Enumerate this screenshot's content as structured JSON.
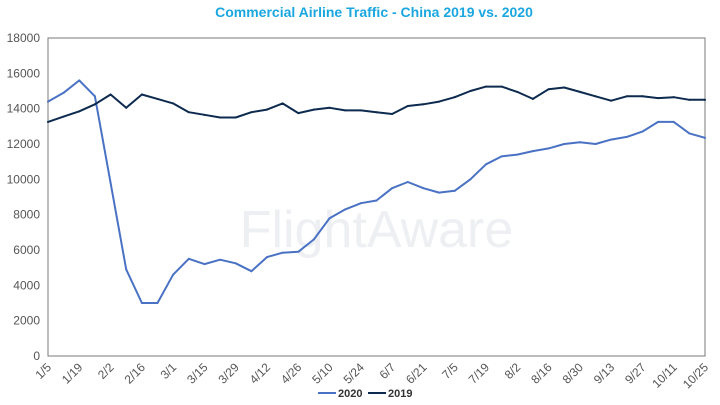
{
  "chart_data": {
    "type": "line",
    "title": "Commercial Airline Traffic - China 2019 vs. 2020",
    "watermark": "FlightAware",
    "xlabel": "",
    "ylabel": "",
    "ylim": [
      0,
      18000
    ],
    "yticks": [
      0,
      2000,
      4000,
      6000,
      8000,
      10000,
      12000,
      14000,
      16000,
      18000
    ],
    "grid": false,
    "legend_position": "bottom-center",
    "x": [
      "1/5",
      "1/12",
      "1/19",
      "1/26",
      "2/2",
      "2/9",
      "2/16",
      "2/23",
      "3/1",
      "3/8",
      "3/15",
      "3/22",
      "3/29",
      "4/5",
      "4/12",
      "4/19",
      "4/26",
      "5/3",
      "5/10",
      "5/17",
      "5/24",
      "5/31",
      "6/7",
      "6/14",
      "6/21",
      "6/28",
      "7/5",
      "7/12",
      "7/19",
      "7/26",
      "8/2",
      "8/9",
      "8/16",
      "8/23",
      "8/30",
      "9/6",
      "9/13",
      "9/20",
      "9/27",
      "10/4",
      "10/11",
      "10/18",
      "10/25"
    ],
    "xtick_labels": [
      "1/5",
      "1/19",
      "2/2",
      "2/16",
      "3/1",
      "3/15",
      "3/29",
      "4/12",
      "4/26",
      "5/10",
      "5/24",
      "6/7",
      "6/21",
      "7/5",
      "7/19",
      "8/2",
      "8/16",
      "8/30",
      "9/13",
      "9/27",
      "10/11",
      "10/25"
    ],
    "series": [
      {
        "name": "2020",
        "color": "#4a72c4",
        "values": [
          14400,
          14900,
          15600,
          14700,
          9800,
          4900,
          3000,
          3000,
          4600,
          5500,
          5200,
          5450,
          5250,
          4800,
          5600,
          5850,
          5900,
          6600,
          7800,
          8300,
          8650,
          8800,
          9500,
          9850,
          9500,
          9250,
          9350,
          10000,
          10850,
          11300,
          11400,
          11600,
          11750,
          12000,
          12100,
          12000,
          12250,
          12400,
          12700,
          13250,
          13250,
          12600,
          12350
        ]
      },
      {
        "name": "2019",
        "color": "#0d2a4f",
        "values": [
          13250,
          13550,
          13850,
          14250,
          14800,
          14050,
          14800,
          14550,
          14300,
          13800,
          13650,
          13500,
          13500,
          13800,
          13950,
          14300,
          13750,
          13950,
          14050,
          13900,
          13900,
          13800,
          13700,
          14150,
          14250,
          14400,
          14650,
          15000,
          15250,
          15250,
          14950,
          14550,
          15100,
          15200,
          14950,
          14700,
          14450,
          14700,
          14700,
          14600,
          14650,
          14500,
          14500
        ]
      }
    ]
  }
}
